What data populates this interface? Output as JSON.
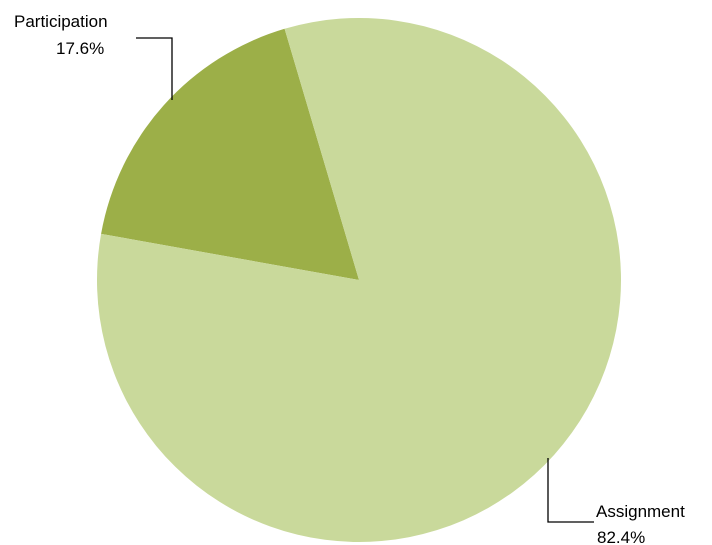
{
  "chart_data": {
    "type": "pie",
    "start_angle_deg": -16.5,
    "direction": "counterclockwise",
    "slices": [
      {
        "label": "Participation",
        "value": 17.6,
        "value_label": "17.6%",
        "color": "#9caf48"
      },
      {
        "label": "Assignment",
        "value": 82.4,
        "value_label": "82.4%",
        "color": "#c9d99b"
      }
    ]
  }
}
